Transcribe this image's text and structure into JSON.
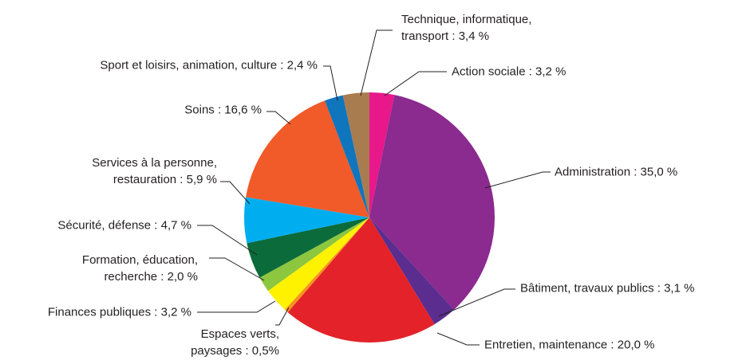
{
  "chart_data": {
    "type": "pie",
    "categories": [
      "Action sociale : 3,2 %",
      "Administration : 35,0 %",
      "Bâtiment, travaux publics : 3,1 %",
      "Entretien, maintenance : 20,0 %",
      "Espaces verts,\npaysages : 0,5%",
      "Finances publiques : 3,2 %",
      "Formation, éducation,\nrecherche : 2,0 %",
      "Sécurité, défense : 4,7 %",
      "Services à la personne,\nrestauration : 5,9 %",
      "Soins : 16,6 %",
      "Sport et loisirs, animation, culture : 2,4 %",
      "Technique, informatique,\ntransport : 3,4 %"
    ],
    "values": [
      3.2,
      35.0,
      3.1,
      20.0,
      0.5,
      3.2,
      2.0,
      4.7,
      5.9,
      16.6,
      2.4,
      3.4
    ],
    "colors": [
      "#e8178a",
      "#8b2a8f",
      "#5b2d8e",
      "#e42229",
      "#f7941d",
      "#fff200",
      "#8dc63f",
      "#0b6b3a",
      "#00aeef",
      "#f15a29",
      "#0f75bc",
      "#a97c50"
    ]
  }
}
